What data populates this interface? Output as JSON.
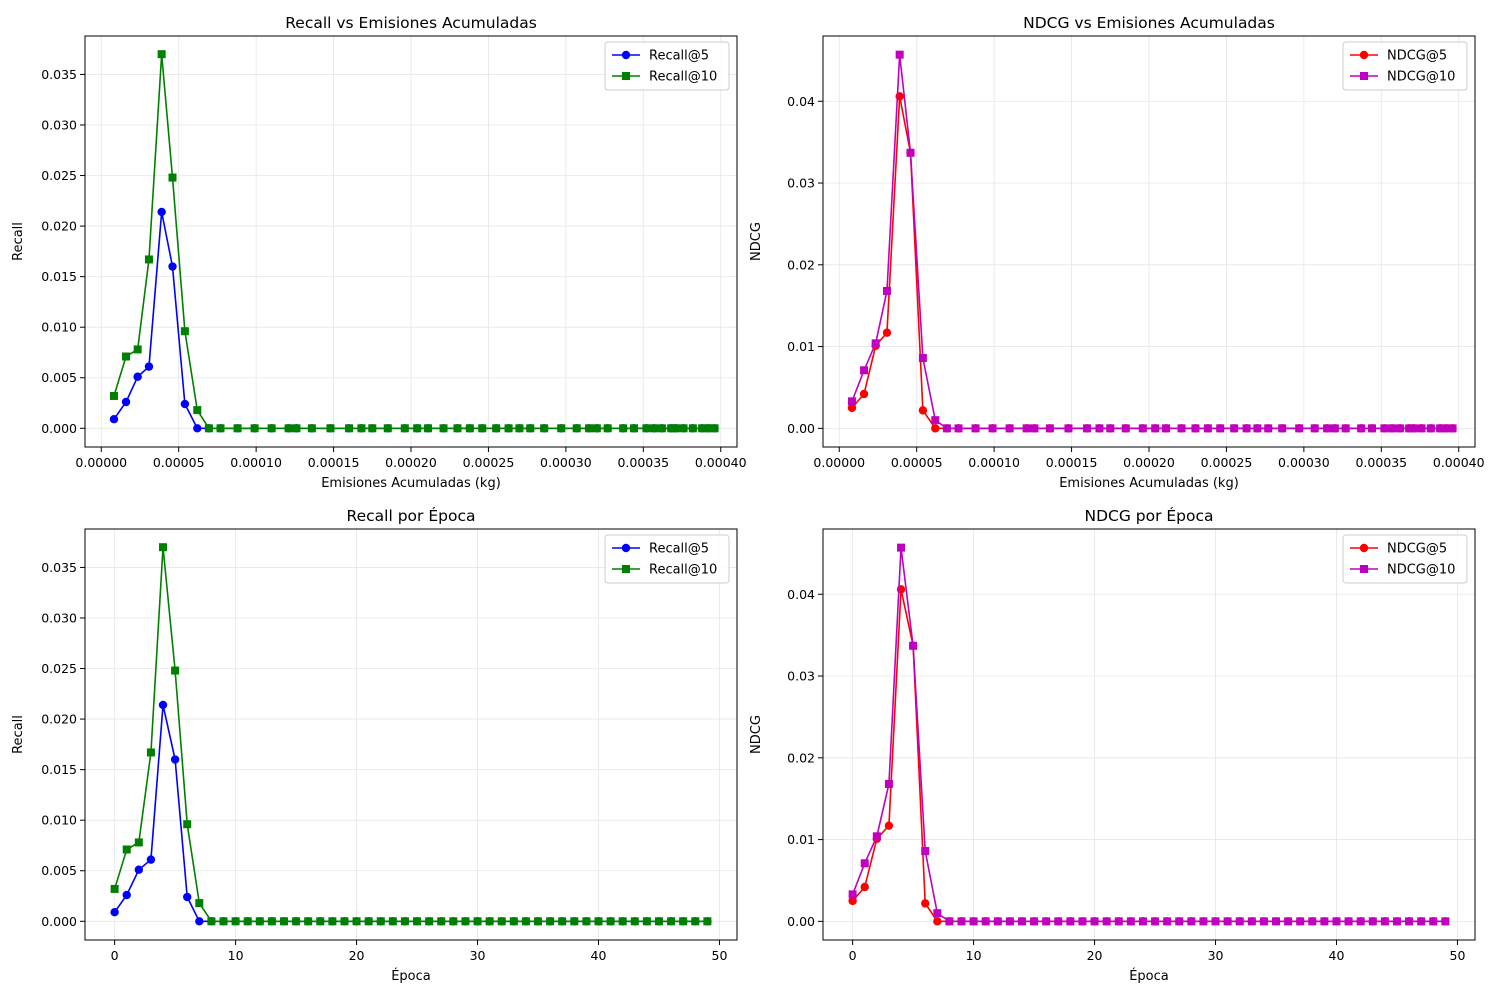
{
  "chart_data": [
    {
      "type": "line",
      "title": "Recall vs Emisiones Acumuladas",
      "xlabel": "Emisiones Acumuladas (kg)",
      "ylabel": "Recall",
      "xlim": [
        -1.05e-05,
        0.0004105
      ],
      "ylim": [
        -0.00185,
        0.0388
      ],
      "xticks": [
        0,
        5e-05,
        0.0001,
        0.00015,
        0.0002,
        0.00025,
        0.0003,
        0.00035,
        0.0004
      ],
      "xtick_labels": [
        "0.00000",
        "0.00005",
        "0.00010",
        "0.00015",
        "0.00020",
        "0.00025",
        "0.00030",
        "0.00035",
        "0.00040"
      ],
      "yticks": [
        0,
        0.005,
        0.01,
        0.015,
        0.02,
        0.025,
        0.03,
        0.035
      ],
      "ytick_labels": [
        "0.000",
        "0.005",
        "0.010",
        "0.015",
        "0.020",
        "0.025",
        "0.030",
        "0.035"
      ],
      "grid": true,
      "legend": "top-right",
      "x_kind": "emissions",
      "series": [
        {
          "name": "Recall@5",
          "color": "#0000ff",
          "marker": "circle",
          "values": [
            0.0009,
            0.0026,
            0.0051,
            0.0061,
            0.0214,
            0.016,
            0.0024,
            0.0,
            0,
            0,
            0,
            0,
            0,
            0,
            0,
            0,
            0,
            0,
            0,
            0,
            0,
            0,
            0,
            0,
            0,
            0,
            0,
            0,
            0,
            0,
            0,
            0,
            0,
            0,
            0,
            0,
            0,
            0,
            0,
            0,
            0,
            0,
            0,
            0,
            0,
            0,
            0,
            0,
            0,
            0
          ]
        },
        {
          "name": "Recall@10",
          "color": "#008000",
          "marker": "square",
          "values": [
            0.0032,
            0.0071,
            0.0078,
            0.0167,
            0.037,
            0.0248,
            0.0096,
            0.0018,
            0,
            0,
            0,
            0,
            0,
            0,
            0,
            0,
            0,
            0,
            0,
            0,
            0,
            0,
            0,
            0,
            0,
            0,
            0,
            0,
            0,
            0,
            0,
            0,
            0,
            0,
            0,
            0,
            0,
            0,
            0,
            0,
            0,
            0,
            0,
            0,
            0,
            0,
            0,
            0,
            0,
            0
          ]
        }
      ]
    },
    {
      "type": "line",
      "title": "NDCG vs Emisiones Acumuladas",
      "xlabel": "Emisiones Acumuladas (kg)",
      "ylabel": "NDCG",
      "xlim": [
        -1.05e-05,
        0.0004105
      ],
      "ylim": [
        -0.00228,
        0.04798
      ],
      "xticks": [
        0,
        5e-05,
        0.0001,
        0.00015,
        0.0002,
        0.00025,
        0.0003,
        0.00035,
        0.0004
      ],
      "xtick_labels": [
        "0.00000",
        "0.00005",
        "0.00010",
        "0.00015",
        "0.00020",
        "0.00025",
        "0.00030",
        "0.00035",
        "0.00040"
      ],
      "yticks": [
        0,
        0.01,
        0.02,
        0.03,
        0.04
      ],
      "ytick_labels": [
        "0.00",
        "0.01",
        "0.02",
        "0.03",
        "0.04"
      ],
      "grid": true,
      "legend": "top-right",
      "x_kind": "emissions",
      "series": [
        {
          "name": "NDCG@5",
          "color": "#ff0000",
          "marker": "circle",
          "values": [
            0.0025,
            0.0042,
            0.0101,
            0.0117,
            0.0406,
            0.0337,
            0.0022,
            0.0,
            0,
            0,
            0,
            0,
            0,
            0,
            0,
            0,
            0,
            0,
            0,
            0,
            0,
            0,
            0,
            0,
            0,
            0,
            0,
            0,
            0,
            0,
            0,
            0,
            0,
            0,
            0,
            0,
            0,
            0,
            0,
            0,
            0,
            0,
            0,
            0,
            0,
            0,
            0,
            0,
            0,
            0
          ]
        },
        {
          "name": "NDCG@10",
          "color": "#bf00bf",
          "marker": "square",
          "values": [
            0.0033,
            0.0071,
            0.0104,
            0.0168,
            0.0457,
            0.0337,
            0.0086,
            0.001,
            0,
            0,
            0,
            0,
            0,
            0,
            0,
            0,
            0,
            0,
            0,
            0,
            0,
            0,
            0,
            0,
            0,
            0,
            0,
            0,
            0,
            0,
            0,
            0,
            0,
            0,
            0,
            0,
            0,
            0,
            0,
            0,
            0,
            0,
            0,
            0,
            0,
            0,
            0,
            0,
            0,
            0
          ]
        }
      ]
    },
    {
      "type": "line",
      "title": "Recall por Época",
      "xlabel": "Época",
      "ylabel": "Recall",
      "xlim": [
        -2.45,
        51.45
      ],
      "ylim": [
        -0.00185,
        0.0388
      ],
      "xticks": [
        0,
        10,
        20,
        30,
        40,
        50
      ],
      "xtick_labels": [
        "0",
        "10",
        "20",
        "30",
        "40",
        "50"
      ],
      "yticks": [
        0,
        0.005,
        0.01,
        0.015,
        0.02,
        0.025,
        0.03,
        0.035
      ],
      "ytick_labels": [
        "0.000",
        "0.005",
        "0.010",
        "0.015",
        "0.020",
        "0.025",
        "0.030",
        "0.035"
      ],
      "grid": true,
      "legend": "top-right",
      "x_kind": "epoch",
      "series": [
        {
          "name": "Recall@5",
          "color": "#0000ff",
          "marker": "circle",
          "values": [
            0.0009,
            0.0026,
            0.0051,
            0.0061,
            0.0214,
            0.016,
            0.0024,
            0.0,
            0,
            0,
            0,
            0,
            0,
            0,
            0,
            0,
            0,
            0,
            0,
            0,
            0,
            0,
            0,
            0,
            0,
            0,
            0,
            0,
            0,
            0,
            0,
            0,
            0,
            0,
            0,
            0,
            0,
            0,
            0,
            0,
            0,
            0,
            0,
            0,
            0,
            0,
            0,
            0,
            0,
            0
          ]
        },
        {
          "name": "Recall@10",
          "color": "#008000",
          "marker": "square",
          "values": [
            0.0032,
            0.0071,
            0.0078,
            0.0167,
            0.037,
            0.0248,
            0.0096,
            0.0018,
            0,
            0,
            0,
            0,
            0,
            0,
            0,
            0,
            0,
            0,
            0,
            0,
            0,
            0,
            0,
            0,
            0,
            0,
            0,
            0,
            0,
            0,
            0,
            0,
            0,
            0,
            0,
            0,
            0,
            0,
            0,
            0,
            0,
            0,
            0,
            0,
            0,
            0,
            0,
            0,
            0,
            0
          ]
        }
      ]
    },
    {
      "type": "line",
      "title": "NDCG por Época",
      "xlabel": "Época",
      "ylabel": "NDCG",
      "xlim": [
        -2.45,
        51.45
      ],
      "ylim": [
        -0.00228,
        0.04798
      ],
      "xticks": [
        0,
        10,
        20,
        30,
        40,
        50
      ],
      "xtick_labels": [
        "0",
        "10",
        "20",
        "30",
        "40",
        "50"
      ],
      "yticks": [
        0,
        0.01,
        0.02,
        0.03,
        0.04
      ],
      "ytick_labels": [
        "0.00",
        "0.01",
        "0.02",
        "0.03",
        "0.04"
      ],
      "grid": true,
      "legend": "top-right",
      "x_kind": "epoch",
      "series": [
        {
          "name": "NDCG@5",
          "color": "#ff0000",
          "marker": "circle",
          "values": [
            0.0025,
            0.0042,
            0.0101,
            0.0117,
            0.0406,
            0.0337,
            0.0022,
            0.0,
            0,
            0,
            0,
            0,
            0,
            0,
            0,
            0,
            0,
            0,
            0,
            0,
            0,
            0,
            0,
            0,
            0,
            0,
            0,
            0,
            0,
            0,
            0,
            0,
            0,
            0,
            0,
            0,
            0,
            0,
            0,
            0,
            0,
            0,
            0,
            0,
            0,
            0,
            0,
            0,
            0,
            0
          ]
        },
        {
          "name": "NDCG@10",
          "color": "#bf00bf",
          "marker": "square",
          "values": [
            0.0033,
            0.0071,
            0.0104,
            0.0168,
            0.0457,
            0.0337,
            0.0086,
            0.001,
            0,
            0,
            0,
            0,
            0,
            0,
            0,
            0,
            0,
            0,
            0,
            0,
            0,
            0,
            0,
            0,
            0,
            0,
            0,
            0,
            0,
            0,
            0,
            0,
            0,
            0,
            0,
            0,
            0,
            0,
            0,
            0,
            0,
            0,
            0,
            0,
            0,
            0,
            0,
            0,
            0,
            0
          ]
        }
      ]
    }
  ]
}
